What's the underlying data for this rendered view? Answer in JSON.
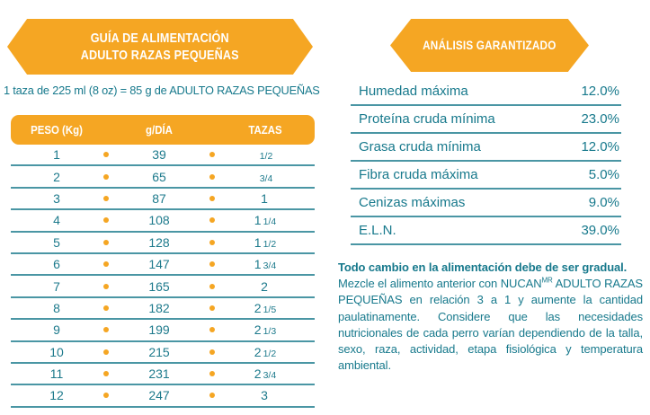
{
  "feeding_guide": {
    "banner_line1": "GUÍA DE ALIMENTACIÓN",
    "banner_line2": "ADULTO RAZAS PEQUEÑAS",
    "note": "1 taza de 225 ml (8 oz) = 85 g de ADULTO RAZAS PEQUEÑAS",
    "table": {
      "headers": {
        "peso": "PESO (Kg)",
        "grams": "g/DÍA",
        "cups": "TAZAS"
      },
      "rows": [
        {
          "peso": "1",
          "grams": "39",
          "cups_whole": "",
          "cups_frac": "1/2"
        },
        {
          "peso": "2",
          "grams": "65",
          "cups_whole": "",
          "cups_frac": "3/4"
        },
        {
          "peso": "3",
          "grams": "87",
          "cups_whole": "1",
          "cups_frac": ""
        },
        {
          "peso": "4",
          "grams": "108",
          "cups_whole": "1",
          "cups_frac": "1/4"
        },
        {
          "peso": "5",
          "grams": "128",
          "cups_whole": "1",
          "cups_frac": "1/2"
        },
        {
          "peso": "6",
          "grams": "147",
          "cups_whole": "1",
          "cups_frac": "3/4"
        },
        {
          "peso": "7",
          "grams": "165",
          "cups_whole": "2",
          "cups_frac": ""
        },
        {
          "peso": "8",
          "grams": "182",
          "cups_whole": "2",
          "cups_frac": "1/5"
        },
        {
          "peso": "9",
          "grams": "199",
          "cups_whole": "2",
          "cups_frac": "1/3"
        },
        {
          "peso": "10",
          "grams": "215",
          "cups_whole": "2",
          "cups_frac": "1/2"
        },
        {
          "peso": "11",
          "grams": "231",
          "cups_whole": "2",
          "cups_frac": "3/4"
        },
        {
          "peso": "12",
          "grams": "247",
          "cups_whole": "3",
          "cups_frac": ""
        }
      ]
    }
  },
  "analysis": {
    "banner": "ANÁLISIS GARANTIZADO",
    "rows": [
      {
        "label": "Humedad máxima",
        "value": "12.0%"
      },
      {
        "label": "Proteína cruda mínima",
        "value": "23.0%"
      },
      {
        "label": "Grasa cruda mínima",
        "value": "12.0%"
      },
      {
        "label": "Fibra cruda máxima",
        "value": "5.0%"
      },
      {
        "label": "Cenizas máximas",
        "value": "9.0%"
      },
      {
        "label": "E.L.N.",
        "value": "39.0%"
      }
    ],
    "paragraph": {
      "bold": "Todo cambio en la alimentación debe de ser gradual.",
      "part1": "Mezcle el alimento anterior con NUCAN",
      "sup": "MR",
      "part2": " ADULTO RAZAS PEQUEÑAS en relación 3 a 1 y aumente la cantidad paulatinamente. Considere que las necesidades nutricionales de cada perro varían dependiendo de la talla, sexo, raza, actividad, etapa fisiológica y temperatura ambiental."
    }
  },
  "colors": {
    "accent_orange": "#F5A623",
    "teal_text": "#17798C",
    "teal_line": "#4A96A4"
  }
}
